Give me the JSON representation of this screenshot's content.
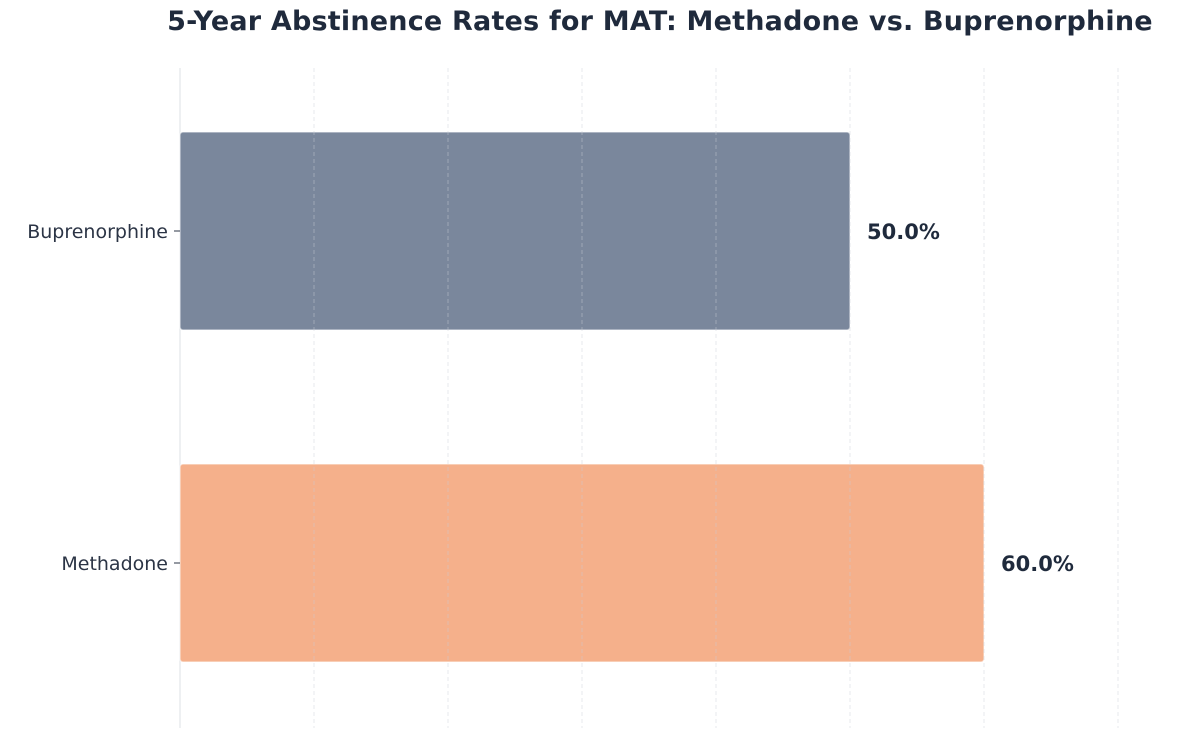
{
  "chart_data": {
    "type": "bar",
    "orientation": "horizontal",
    "title": "5-Year Abstinence Rates for MAT: Methadone vs. Buprenorphine",
    "xlabel": "",
    "ylabel": "",
    "categories": [
      "Buprenorphine",
      "Methadone"
    ],
    "values": [
      50.0,
      60.0
    ],
    "value_labels": [
      "50.0%",
      "60.0%"
    ],
    "xlim": [
      0,
      75
    ],
    "grid": "vertical dashed",
    "colors": [
      "#7a879c",
      "#f5b08b"
    ]
  }
}
